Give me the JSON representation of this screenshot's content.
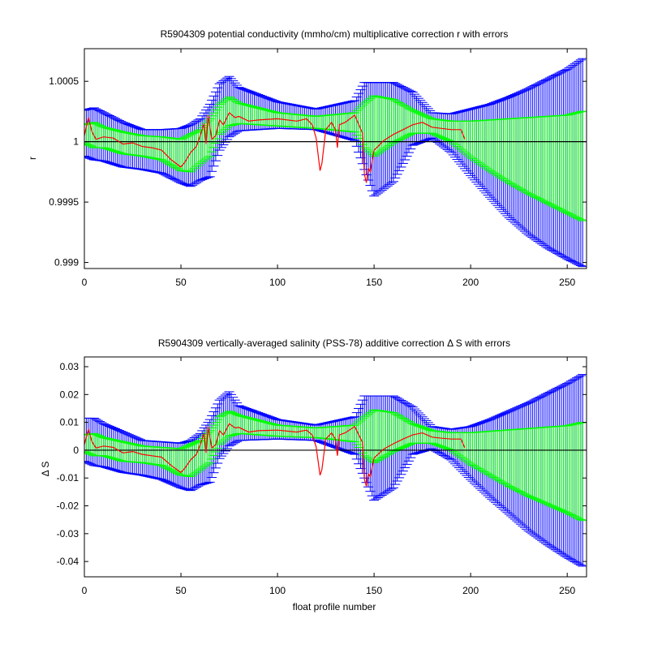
{
  "colors": {
    "background": "#ffffff",
    "outer_error": "#0000ff",
    "inner_error": "#00ff00",
    "correction": "#ff0000",
    "reference": "#000000"
  },
  "chart_data": [
    {
      "type": "line",
      "title": "R5904309 potential conductivity (mmho/cm) multiplicative correction r with errors",
      "xlabel": "",
      "ylabel": "r",
      "xlim": [
        0,
        260
      ],
      "ylim": [
        0.99895,
        1.00077
      ],
      "xticks": [
        0,
        50,
        100,
        150,
        200,
        250
      ],
      "yticks": [
        0.999,
        0.9995,
        1,
        1.0005
      ],
      "ytick_labels": [
        "0.999",
        "0.9995",
        "1",
        "1.0005"
      ],
      "reference_line": 1,
      "grid": false,
      "series": [
        {
          "role": "outer_error_band",
          "x": [
            0,
            5,
            10,
            20,
            30,
            40,
            50,
            55,
            60,
            65,
            70,
            75,
            80,
            100,
            120,
            140,
            145,
            150,
            160,
            170,
            180,
            190,
            200,
            210,
            220,
            230,
            240,
            250,
            260
          ],
          "upper": [
            1.00026,
            1.00028,
            1.00024,
            1.00016,
            1.0001,
            1.0001,
            1.00011,
            1.00014,
            1.00019,
            1.00031,
            1.00048,
            1.00054,
            1.00045,
            1.00033,
            1.00027,
            1.00034,
            1.00049,
            1.00049,
            1.00049,
            1.00041,
            1.00024,
            1.00023,
            1.00027,
            1.00031,
            1.00037,
            1.00044,
            1.00052,
            1.0006,
            1.00071
          ],
          "lower": [
            0.99988,
            0.99985,
            0.99984,
            0.99979,
            0.99977,
            0.99974,
            0.99966,
            0.99963,
            0.99968,
            0.99971,
            0.99993,
            1.00004,
            1.00009,
            1.00011,
            1.0001,
            1.00001,
            0.99977,
            0.99955,
            0.99967,
            0.99997,
            1.00003,
            0.99991,
            0.99972,
            0.99954,
            0.99937,
            0.99923,
            0.99912,
            0.99903,
            0.99895
          ]
        },
        {
          "role": "inner_error_band",
          "x": [
            0,
            5,
            10,
            20,
            30,
            40,
            50,
            55,
            60,
            65,
            70,
            75,
            80,
            100,
            120,
            140,
            145,
            150,
            160,
            170,
            180,
            190,
            200,
            210,
            220,
            230,
            240,
            250,
            260
          ],
          "upper": [
            1.00014,
            1.00016,
            1.00012,
            1.00008,
            1.00005,
            1.00004,
            1.00002,
            1.00006,
            1.0001,
            1.00019,
            1.00031,
            1.00037,
            1.00032,
            1.00024,
            1.00021,
            1.00024,
            1.00032,
            1.00038,
            1.00035,
            1.00026,
            1.00019,
            1.00017,
            1.00017,
            1.00018,
            1.00019,
            1.0002,
            1.00021,
            1.00022,
            1.00026
          ],
          "lower": [
            0.99999,
            0.99995,
            0.99995,
            0.9999,
            0.99988,
            0.99985,
            0.99976,
            0.99975,
            0.99982,
            0.99988,
            1.00006,
            1.00013,
            1.00015,
            1.00013,
            1.00011,
            1.00008,
            0.99995,
            0.99988,
            0.99999,
            1.00007,
            1.00007,
            1.0,
            0.99987,
            0.99976,
            0.99966,
            0.99957,
            0.99949,
            0.99941,
            0.99933
          ]
        },
        {
          "role": "correction",
          "x": [
            0,
            2,
            4,
            6,
            10,
            15,
            20,
            25,
            30,
            35,
            40,
            45,
            50,
            52,
            55,
            58,
            60,
            62,
            63,
            64,
            66,
            68,
            70,
            72,
            75,
            78,
            80,
            85,
            90,
            100,
            110,
            115,
            118,
            120,
            122,
            123,
            125,
            128,
            130,
            131,
            132,
            135,
            140,
            144,
            145,
            146,
            147,
            148,
            150,
            152,
            155,
            160,
            165,
            170,
            175,
            180,
            185,
            190,
            195,
            197
          ],
          "y": [
            1.00005,
            1.0002,
            1.00008,
            1.00002,
            1.00004,
            1.00003,
            0.99998,
            0.99999,
            0.99996,
            0.99995,
            0.99993,
            0.99985,
            0.99979,
            0.99983,
            0.99991,
            0.99996,
            1.00005,
            1.00015,
            0.99998,
            1.00022,
            1.00002,
            1.00005,
            1.00018,
            1.00014,
            1.00024,
            1.0002,
            1.00021,
            1.00017,
            1.00018,
            1.00019,
            1.00017,
            1.00019,
            1.00014,
            1.00003,
            0.99976,
            0.99982,
            1.0001,
            1.00016,
            1.0001,
            0.99995,
            1.00014,
            1.00016,
            1.00022,
            1.00007,
            0.99973,
            0.99966,
            0.99978,
            0.99975,
            0.99993,
            0.99996,
            1.00001,
            1.00006,
            1.0001,
            1.00014,
            1.00016,
            1.00012,
            1.00011,
            1.0001,
            1.0001,
            1.00002
          ]
        }
      ]
    },
    {
      "type": "line",
      "title": "R5904309 vertically-averaged salinity (PSS-78) additive correction Δ S with errors",
      "xlabel": "float profile number",
      "ylabel": "Δ S",
      "xlim": [
        0,
        260
      ],
      "ylim": [
        -0.0455,
        0.0335
      ],
      "xticks": [
        0,
        50,
        100,
        150,
        200,
        250
      ],
      "yticks": [
        -0.04,
        -0.03,
        -0.02,
        -0.01,
        0,
        0.01,
        0.02,
        0.03
      ],
      "ytick_labels": [
        "-0.04",
        "-0.03",
        "-0.02",
        "-0.01",
        "0",
        "0.01",
        "0.02",
        "0.03"
      ],
      "reference_line": 0,
      "grid": false,
      "series": [
        {
          "role": "outer_error_band",
          "x": [
            0,
            5,
            10,
            20,
            30,
            40,
            50,
            55,
            60,
            65,
            70,
            75,
            80,
            100,
            120,
            140,
            145,
            150,
            160,
            170,
            180,
            190,
            200,
            210,
            220,
            230,
            240,
            250,
            260
          ],
          "upper": [
            0.0115,
            0.0115,
            0.0095,
            0.0065,
            0.0035,
            0.003,
            0.0025,
            0.0035,
            0.006,
            0.011,
            0.018,
            0.021,
            0.016,
            0.011,
            0.009,
            0.012,
            0.0195,
            0.0195,
            0.0195,
            0.0155,
            0.0085,
            0.0075,
            0.0085,
            0.011,
            0.014,
            0.017,
            0.0205,
            0.024,
            0.028
          ],
          "lower": [
            -0.004,
            -0.0055,
            -0.006,
            -0.008,
            -0.009,
            -0.0105,
            -0.0135,
            -0.0145,
            -0.0125,
            -0.0115,
            -0.003,
            0.0015,
            0.0035,
            0.004,
            0.0035,
            -0.0015,
            -0.01,
            -0.018,
            -0.0135,
            -0.0015,
            0.0005,
            -0.0035,
            -0.0105,
            -0.017,
            -0.023,
            -0.029,
            -0.034,
            -0.0385,
            -0.0425
          ]
        },
        {
          "role": "inner_error_band",
          "x": [
            0,
            5,
            10,
            20,
            30,
            40,
            50,
            55,
            60,
            65,
            70,
            75,
            80,
            100,
            120,
            140,
            145,
            150,
            160,
            170,
            180,
            190,
            200,
            210,
            220,
            230,
            240,
            250,
            260
          ],
          "upper": [
            0.0055,
            0.006,
            0.0045,
            0.003,
            0.0015,
            0.001,
            0.0005,
            0.002,
            0.0035,
            0.007,
            0.012,
            0.014,
            0.0125,
            0.009,
            0.008,
            0.009,
            0.012,
            0.0145,
            0.0135,
            0.0095,
            0.007,
            0.0063,
            0.0063,
            0.0068,
            0.0073,
            0.0078,
            0.0083,
            0.0088,
            0.0103
          ],
          "lower": [
            -0.0005,
            -0.002,
            -0.002,
            -0.004,
            -0.0045,
            -0.0055,
            -0.009,
            -0.0095,
            -0.007,
            -0.0045,
            0.002,
            0.005,
            0.006,
            0.005,
            0.0045,
            0.003,
            -0.002,
            -0.0045,
            -0.0005,
            0.0025,
            0.0025,
            0.0,
            -0.005,
            -0.009,
            -0.013,
            -0.0165,
            -0.0195,
            -0.0225,
            -0.026
          ]
        },
        {
          "role": "correction",
          "x": [
            0,
            2,
            4,
            6,
            10,
            15,
            20,
            25,
            30,
            35,
            40,
            45,
            50,
            52,
            55,
            58,
            60,
            62,
            63,
            64,
            66,
            68,
            70,
            72,
            75,
            78,
            80,
            85,
            90,
            100,
            110,
            115,
            118,
            120,
            122,
            123,
            125,
            128,
            130,
            131,
            132,
            135,
            140,
            144,
            145,
            146,
            147,
            148,
            150,
            152,
            155,
            160,
            165,
            170,
            175,
            180,
            185,
            190,
            195,
            197
          ],
          "y": [
            0.002,
            0.0075,
            0.003,
            0.0008,
            0.0015,
            0.001,
            -0.001,
            -0.0005,
            -0.0015,
            -0.002,
            -0.0025,
            -0.0055,
            -0.008,
            -0.0065,
            -0.0035,
            -0.0015,
            0.002,
            0.006,
            -0.001,
            0.0085,
            0.0008,
            0.002,
            0.007,
            0.0055,
            0.0095,
            0.008,
            0.0082,
            0.0065,
            0.007,
            0.0072,
            0.0065,
            0.0072,
            0.0055,
            0.0012,
            -0.009,
            -0.007,
            0.004,
            0.0062,
            0.004,
            -0.002,
            0.0055,
            0.0062,
            0.0085,
            0.0028,
            -0.0105,
            -0.013,
            -0.0085,
            -0.0095,
            -0.0028,
            -0.0015,
            0.0004,
            0.0023,
            0.004,
            0.0055,
            0.0062,
            0.0047,
            0.0043,
            0.004,
            0.004,
            0.0008
          ]
        }
      ]
    }
  ]
}
